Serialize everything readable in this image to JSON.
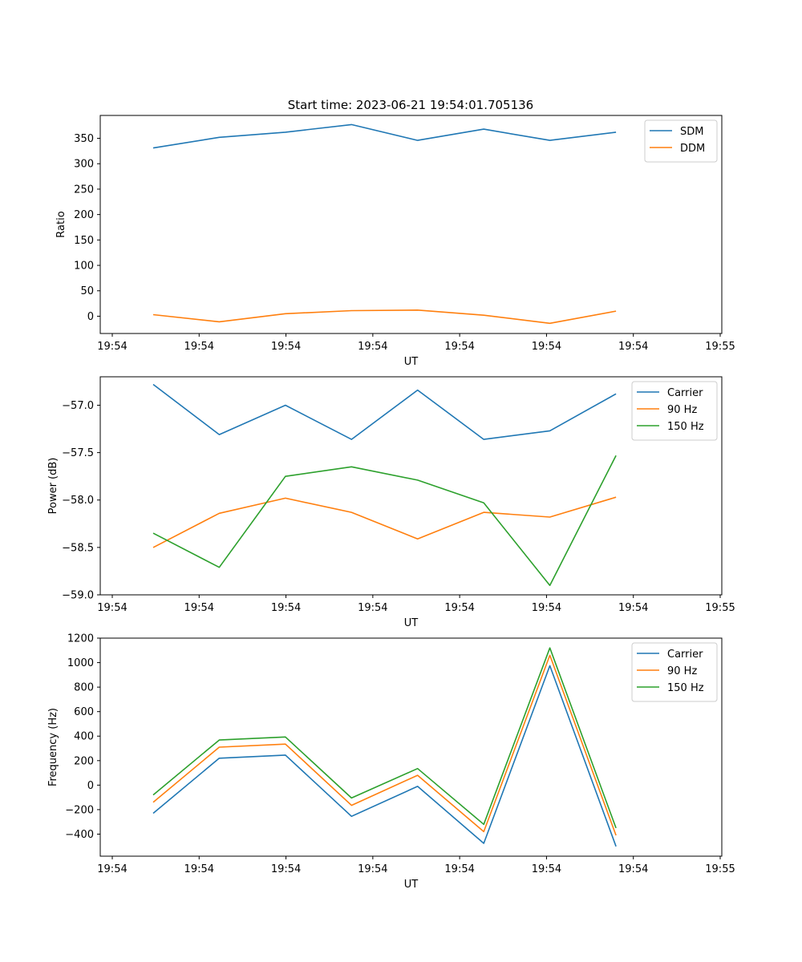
{
  "figure_title": "Start time: 2023-06-21 19:54:01.705136",
  "chart_data": [
    {
      "type": "line",
      "title": "Start time: 2023-06-21 19:54:01.705136",
      "xlabel": "UT",
      "ylabel": "Ratio",
      "x": [
        "19:54:02.7",
        "19:54:03.2",
        "19:54:03.7",
        "19:54:04.2",
        "19:54:04.7",
        "19:54:05.2",
        "19:54:05.7",
        "19:54:06.2"
      ],
      "xlim": [
        "19:54:02.3",
        "19:54:07.0"
      ],
      "x_ticks": [
        "19:54",
        "19:54",
        "19:54",
        "19:54",
        "19:54",
        "19:54",
        "19:54",
        "19:55"
      ],
      "ylim": [
        -34,
        395
      ],
      "y_ticks": [
        0,
        50,
        100,
        150,
        200,
        250,
        300,
        350
      ],
      "legend_position": "upper-right",
      "grid": false,
      "series": [
        {
          "name": "SDM",
          "color": "#1f77b4",
          "values": [
            331,
            352,
            362,
            377,
            346,
            368,
            346,
            362
          ]
        },
        {
          "name": "DDM",
          "color": "#ff7f0e",
          "values": [
            3,
            -11,
            5,
            11,
            12,
            2,
            -14,
            10
          ]
        }
      ]
    },
    {
      "type": "line",
      "xlabel": "UT",
      "ylabel": "Power (dB)",
      "x": [
        "19:54:02.7",
        "19:54:03.2",
        "19:54:03.7",
        "19:54:04.2",
        "19:54:04.7",
        "19:54:05.2",
        "19:54:05.7",
        "19:54:06.2"
      ],
      "xlim": [
        "19:54:02.3",
        "19:54:07.0"
      ],
      "x_ticks": [
        "19:54",
        "19:54",
        "19:54",
        "19:54",
        "19:54",
        "19:54",
        "19:54",
        "19:55"
      ],
      "ylim": [
        -59.0,
        -56.7
      ],
      "y_ticks": [
        "−59.0",
        "−58.5",
        "−58.0",
        "−57.5",
        "−57.0"
      ],
      "y_tick_values": [
        -59.0,
        -58.5,
        -58.0,
        -57.5,
        -57.0
      ],
      "legend_position": "upper-right",
      "grid": false,
      "series": [
        {
          "name": "Carrier",
          "color": "#1f77b4",
          "values": [
            -56.78,
            -57.31,
            -57.0,
            -57.36,
            -56.84,
            -57.36,
            -57.27,
            -56.88
          ]
        },
        {
          "name": "90 Hz",
          "color": "#ff7f0e",
          "values": [
            -58.5,
            -58.14,
            -57.98,
            -58.13,
            -58.41,
            -58.13,
            -58.18,
            -57.97
          ]
        },
        {
          "name": "150 Hz",
          "color": "#2ca02c",
          "values": [
            -58.35,
            -58.71,
            -57.75,
            -57.65,
            -57.79,
            -58.03,
            -58.9,
            -57.53
          ]
        }
      ]
    },
    {
      "type": "line",
      "xlabel": "UT",
      "ylabel": "Frequency (Hz)",
      "x": [
        "19:54:02.7",
        "19:54:03.2",
        "19:54:03.7",
        "19:54:04.2",
        "19:54:04.7",
        "19:54:05.2",
        "19:54:05.7",
        "19:54:06.2"
      ],
      "xlim": [
        "19:54:02.3",
        "19:54:07.0"
      ],
      "x_ticks": [
        "19:54",
        "19:54",
        "19:54",
        "19:54",
        "19:54",
        "19:54",
        "19:54",
        "19:55"
      ],
      "ylim": [
        -580,
        1200
      ],
      "y_ticks": [
        "−400",
        "−200",
        "0",
        "200",
        "400",
        "600",
        "800",
        "1000",
        "1200"
      ],
      "y_tick_values": [
        -400,
        -200,
        0,
        200,
        400,
        600,
        800,
        1000,
        1200
      ],
      "legend_position": "upper-right",
      "grid": false,
      "series": [
        {
          "name": "Carrier",
          "color": "#1f77b4",
          "values": [
            -230,
            220,
            245,
            -255,
            -10,
            -475,
            975,
            -500
          ]
        },
        {
          "name": "90 Hz",
          "color": "#ff7f0e",
          "values": [
            -140,
            310,
            335,
            -165,
            80,
            -380,
            1060,
            -410
          ]
        },
        {
          "name": "150 Hz",
          "color": "#2ca02c",
          "values": [
            -80,
            368,
            393,
            -105,
            135,
            -320,
            1120,
            -350
          ]
        }
      ]
    }
  ]
}
